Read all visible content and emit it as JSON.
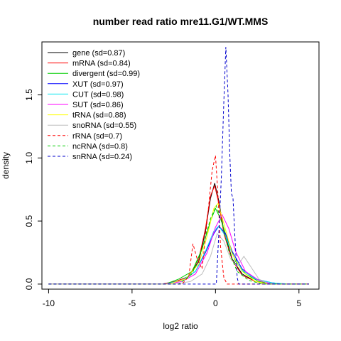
{
  "chart_data": {
    "type": "line",
    "title": "number read ratio mre11.G1/WT.MMS",
    "xlabel": "log2 ratio",
    "ylabel": "density",
    "xlim": [
      -10.4,
      6.2
    ],
    "ylim": [
      -0.04,
      1.92
    ],
    "x_ticks": [
      -10,
      -5,
      0,
      5
    ],
    "x_tick_labels": [
      "-10",
      "-5",
      "0",
      "5"
    ],
    "y_ticks": [
      0.0,
      0.5,
      1.0,
      1.5
    ],
    "y_tick_labels": [
      "0.0",
      "0.5",
      "1.0",
      "1.5"
    ],
    "grid": false,
    "legend_position": "top-left",
    "series": [
      {
        "name": "gene (sd=0.87)",
        "color": "#000000",
        "dash": "solid",
        "points": [
          [
            -10,
            0
          ],
          [
            -3.2,
            0
          ],
          [
            -2.4,
            0.02
          ],
          [
            -1.6,
            0.06
          ],
          [
            -1.0,
            0.18
          ],
          [
            -0.6,
            0.42
          ],
          [
            -0.3,
            0.68
          ],
          [
            -0.05,
            0.8
          ],
          [
            0.2,
            0.66
          ],
          [
            0.5,
            0.42
          ],
          [
            1.0,
            0.2
          ],
          [
            1.6,
            0.08
          ],
          [
            2.4,
            0.02
          ],
          [
            3.2,
            0.0
          ],
          [
            5.6,
            0
          ]
        ]
      },
      {
        "name": "mRNA (sd=0.84)",
        "color": "#ff0000",
        "dash": "solid",
        "points": [
          [
            -10,
            0
          ],
          [
            -3.2,
            0
          ],
          [
            -2.4,
            0.02
          ],
          [
            -1.6,
            0.06
          ],
          [
            -1.0,
            0.2
          ],
          [
            -0.6,
            0.44
          ],
          [
            -0.3,
            0.7
          ],
          [
            -0.05,
            0.78
          ],
          [
            0.2,
            0.64
          ],
          [
            0.5,
            0.4
          ],
          [
            1.0,
            0.19
          ],
          [
            1.6,
            0.07
          ],
          [
            2.4,
            0.02
          ],
          [
            3.2,
            0.0
          ],
          [
            5.6,
            0
          ]
        ]
      },
      {
        "name": "divergent (sd=0.99)",
        "color": "#00cd00",
        "dash": "solid",
        "points": [
          [
            -10,
            0
          ],
          [
            -3.0,
            0
          ],
          [
            -2.2,
            0.04
          ],
          [
            -1.4,
            0.1
          ],
          [
            -0.8,
            0.28
          ],
          [
            -0.3,
            0.5
          ],
          [
            0.0,
            0.6
          ],
          [
            0.3,
            0.52
          ],
          [
            0.7,
            0.36
          ],
          [
            1.2,
            0.18
          ],
          [
            1.8,
            0.08
          ],
          [
            2.6,
            0.02
          ],
          [
            3.5,
            0.0
          ],
          [
            5.6,
            0
          ]
        ]
      },
      {
        "name": "XUT (sd=0.97)",
        "color": "#0000ff",
        "dash": "solid",
        "points": [
          [
            -10,
            0
          ],
          [
            -3.0,
            0
          ],
          [
            -2.0,
            0.03
          ],
          [
            -1.2,
            0.1
          ],
          [
            -0.6,
            0.25
          ],
          [
            -0.1,
            0.4
          ],
          [
            0.2,
            0.46
          ],
          [
            0.6,
            0.4
          ],
          [
            1.0,
            0.26
          ],
          [
            1.6,
            0.12
          ],
          [
            2.4,
            0.04
          ],
          [
            3.4,
            0.01
          ],
          [
            4.2,
            0.0
          ],
          [
            5.6,
            0
          ]
        ]
      },
      {
        "name": "CUT (sd=0.98)",
        "color": "#00e5ee",
        "dash": "solid",
        "points": [
          [
            -10,
            0
          ],
          [
            -3.0,
            0
          ],
          [
            -2.0,
            0.03
          ],
          [
            -1.2,
            0.1
          ],
          [
            -0.6,
            0.26
          ],
          [
            -0.1,
            0.42
          ],
          [
            0.2,
            0.46
          ],
          [
            0.6,
            0.38
          ],
          [
            1.0,
            0.24
          ],
          [
            1.6,
            0.11
          ],
          [
            2.4,
            0.04
          ],
          [
            3.4,
            0.01
          ],
          [
            4.4,
            0.0
          ],
          [
            5.6,
            0
          ]
        ]
      },
      {
        "name": "SUT (sd=0.86)",
        "color": "#ff00ff",
        "dash": "solid",
        "points": [
          [
            -10,
            0
          ],
          [
            -3.0,
            0
          ],
          [
            -2.0,
            0.02
          ],
          [
            -1.2,
            0.08
          ],
          [
            -0.5,
            0.25
          ],
          [
            0.0,
            0.45
          ],
          [
            0.4,
            0.55
          ],
          [
            0.8,
            0.44
          ],
          [
            1.2,
            0.26
          ],
          [
            1.8,
            0.1
          ],
          [
            2.6,
            0.03
          ],
          [
            3.4,
            0.0
          ],
          [
            5.6,
            0
          ]
        ]
      },
      {
        "name": "tRNA (sd=0.88)",
        "color": "#ffff00",
        "dash": "solid",
        "points": [
          [
            -10,
            0
          ],
          [
            -2.8,
            0
          ],
          [
            -1.8,
            0.04
          ],
          [
            -1.0,
            0.16
          ],
          [
            -0.5,
            0.38
          ],
          [
            -0.1,
            0.6
          ],
          [
            0.15,
            0.64
          ],
          [
            0.5,
            0.48
          ],
          [
            1.0,
            0.24
          ],
          [
            1.6,
            0.1
          ],
          [
            2.4,
            0.02
          ],
          [
            3.2,
            0.0
          ],
          [
            5.6,
            0
          ]
        ]
      },
      {
        "name": "snoRNA (sd=0.55)",
        "color": "#bebebe",
        "dash": "solid",
        "points": [
          [
            -10,
            0
          ],
          [
            -2.5,
            0
          ],
          [
            -1.5,
            0.02
          ],
          [
            -0.8,
            0.08
          ],
          [
            -0.3,
            0.22
          ],
          [
            0.1,
            0.4
          ],
          [
            0.5,
            0.34
          ],
          [
            0.9,
            0.2
          ],
          [
            1.3,
            0.14
          ],
          [
            1.7,
            0.22
          ],
          [
            2.1,
            0.14
          ],
          [
            2.6,
            0.04
          ],
          [
            3.2,
            0.0
          ],
          [
            5.6,
            0
          ]
        ]
      },
      {
        "name": "rRNA (sd=0.7)",
        "color": "#ff0000",
        "dash": "dash",
        "points": [
          [
            -10,
            0
          ],
          [
            -2.0,
            0
          ],
          [
            -1.6,
            0.06
          ],
          [
            -1.35,
            0.32
          ],
          [
            -1.1,
            0.2
          ],
          [
            -0.8,
            0.12
          ],
          [
            -0.5,
            0.5
          ],
          [
            -0.2,
            0.9
          ],
          [
            0.0,
            1.02
          ],
          [
            0.15,
            0.7
          ],
          [
            0.3,
            0.3
          ],
          [
            0.5,
            0.05
          ],
          [
            0.7,
            0.0
          ],
          [
            5.6,
            0
          ]
        ]
      },
      {
        "name": "ncRNA (sd=0.8)",
        "color": "#00cd00",
        "dash": "dash",
        "points": [
          [
            -10,
            0
          ],
          [
            -2.2,
            0
          ],
          [
            -1.4,
            0.08
          ],
          [
            -0.8,
            0.28
          ],
          [
            -0.3,
            0.52
          ],
          [
            0.05,
            0.62
          ],
          [
            0.4,
            0.48
          ],
          [
            0.8,
            0.26
          ],
          [
            1.3,
            0.1
          ],
          [
            2.0,
            0.03
          ],
          [
            2.8,
            0.0
          ],
          [
            5.6,
            0
          ]
        ]
      },
      {
        "name": "snRNA (sd=0.24)",
        "color": "#0000cd",
        "dash": "dash",
        "points": [
          [
            -10,
            0
          ],
          [
            0.05,
            0
          ],
          [
            0.2,
            0.4
          ],
          [
            0.35,
            0.85
          ],
          [
            0.5,
            1.45
          ],
          [
            0.62,
            1.88
          ],
          [
            0.75,
            1.5
          ],
          [
            0.85,
            1.05
          ],
          [
            0.95,
            0.72
          ],
          [
            1.05,
            0.68
          ],
          [
            1.15,
            0.4
          ],
          [
            1.3,
            0.05
          ],
          [
            1.4,
            0.0
          ],
          [
            5.6,
            0
          ]
        ]
      }
    ]
  }
}
